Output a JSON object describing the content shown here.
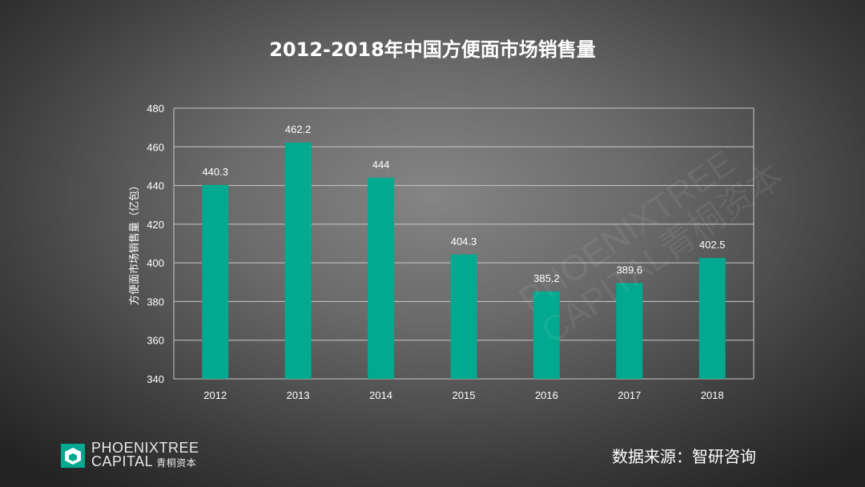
{
  "title": "2012-2018年中国方便面市场销售量",
  "source": "数据来源：智研咨询",
  "logo": {
    "line1": "PHOENIXTREE",
    "line2": "CAPITAL",
    "line2_cn": "青桐资本"
  },
  "watermark": {
    "line1": "PHOENIXTREE",
    "line2": "CAPITAL青桐资本"
  },
  "colors": {
    "bar": "#00a98f",
    "grid": "#c8c8c8",
    "text": "#ffffff"
  },
  "chart_data": {
    "type": "bar",
    "categories": [
      "2012",
      "2013",
      "2014",
      "2015",
      "2016",
      "2017",
      "2018"
    ],
    "values": [
      440.3,
      462.2,
      444,
      404.3,
      385.2,
      389.6,
      402.5
    ],
    "data_labels": [
      "440.3",
      "462.2",
      "444",
      "404.3",
      "385.2",
      "389.6",
      "402.5"
    ],
    "ylabel": "方便面市场销售量（亿包）",
    "xlabel": "",
    "ylim": [
      340,
      480
    ],
    "yticks": [
      340,
      360,
      380,
      400,
      420,
      440,
      460,
      480
    ],
    "grid": true,
    "legend": "none"
  }
}
